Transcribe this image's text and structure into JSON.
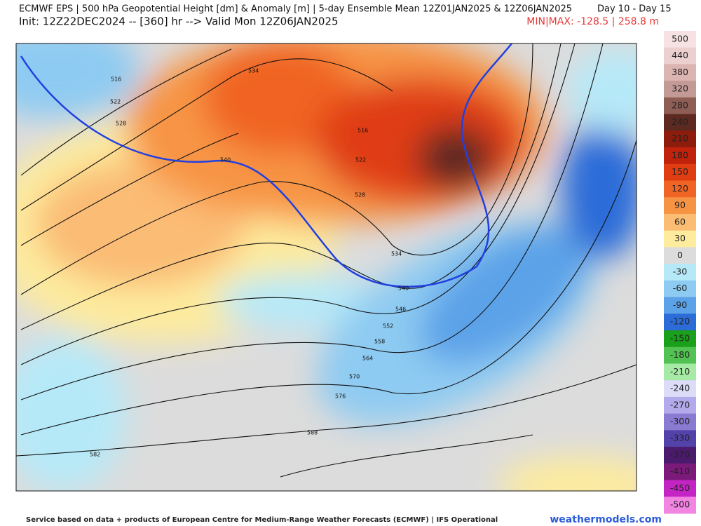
{
  "header": {
    "title": "ECMWF EPS | 500 hPa Geopotential Height [dm] & Anomaly [m] | 5-day Ensemble Mean 12Z01JAN2025 & 12Z06JAN2025",
    "day_range": "Day 10 - Day 15",
    "init": "Init: 12Z22DEC2024 -- [360] hr --> Valid Mon 12Z06JAN2025",
    "minmax": "MIN|MAX: -128.5 | 258.8 m"
  },
  "map": {
    "contour_labels": [
      "516",
      "522",
      "528",
      "540",
      "534",
      "516",
      "522",
      "528",
      "534",
      "540",
      "546",
      "552",
      "558",
      "564",
      "570",
      "576",
      "588",
      "582"
    ]
  },
  "colorbar": {
    "levels": [
      {
        "value": 500,
        "color": "#f6e2e2"
      },
      {
        "value": 440,
        "color": "#ecd0d0"
      },
      {
        "value": 380,
        "color": "#dcb4b2"
      },
      {
        "value": 320,
        "color": "#c49a96"
      },
      {
        "value": 280,
        "color": "#8e5e54"
      },
      {
        "value": 240,
        "color": "#5c2a20"
      },
      {
        "value": 210,
        "color": "#8e1c0c"
      },
      {
        "value": 180,
        "color": "#c0220c"
      },
      {
        "value": 150,
        "color": "#e03e12"
      },
      {
        "value": 120,
        "color": "#f06424"
      },
      {
        "value": 90,
        "color": "#f79444"
      },
      {
        "value": 60,
        "color": "#fbbc74"
      },
      {
        "value": 30,
        "color": "#fdeb9e"
      },
      {
        "value": 0,
        "color": "#dcdcdc"
      },
      {
        "value": -30,
        "color": "#b6e9f8"
      },
      {
        "value": -60,
        "color": "#8ecbf2"
      },
      {
        "value": -90,
        "color": "#5ca2e8"
      },
      {
        "value": -120,
        "color": "#2c6cd8"
      },
      {
        "value": -150,
        "color": "#1aa01a"
      },
      {
        "value": -180,
        "color": "#52c252"
      },
      {
        "value": -210,
        "color": "#a6eaa6"
      },
      {
        "value": -240,
        "color": "#dcdcf8"
      },
      {
        "value": -270,
        "color": "#b2aaea"
      },
      {
        "value": -300,
        "color": "#8a7ad2"
      },
      {
        "value": -330,
        "color": "#5242aa"
      },
      {
        "value": -370,
        "color": "#4c1a6c"
      },
      {
        "value": -410,
        "color": "#7c1a7c"
      },
      {
        "value": -450,
        "color": "#c424c4"
      },
      {
        "value": -500,
        "color": "#f284e2"
      }
    ]
  },
  "footer": {
    "credit": "Service based on data + products of European Centre for Medium-Range Weather Forecasts (ECMWF) | IFS Operational",
    "site": "weathermodels.com"
  }
}
